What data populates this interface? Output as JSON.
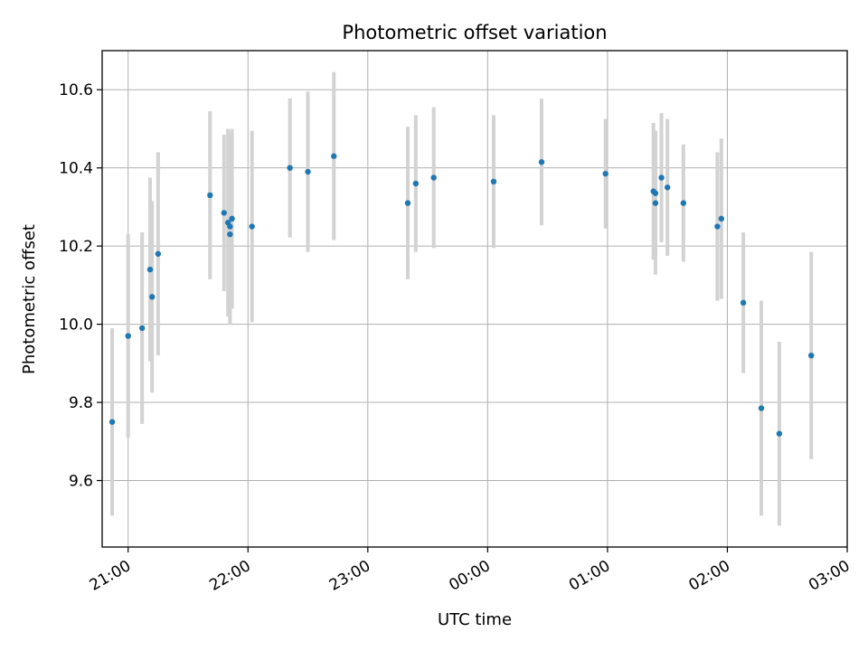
{
  "chart_data": {
    "type": "scatter",
    "title": "Photometric offset variation",
    "xlabel": "UTC time",
    "ylabel": "Photometric offset",
    "x_unit": "UTC time of night, starting 21:00 (after midnight continues as 24:xx)",
    "xlim": [
      "20:47",
      "03:00"
    ],
    "ylim": [
      9.43,
      10.7
    ],
    "x_ticks": [
      "21:00",
      "22:00",
      "23:00",
      "00:00",
      "01:00",
      "02:00",
      "03:00"
    ],
    "y_ticks": [
      "9.6",
      "9.8",
      "10.0",
      "10.2",
      "10.4",
      "10.6"
    ],
    "grid": true,
    "marker_color": "#1f77b4",
    "errorbar_color": "#d3d3d3",
    "series": [
      {
        "points": [
          {
            "x": "20:52",
            "y": 9.75,
            "yerr": 0.24
          },
          {
            "x": "21:00",
            "y": 9.97,
            "yerr": 0.26
          },
          {
            "x": "21:07",
            "y": 9.99,
            "yerr": 0.245
          },
          {
            "x": "21:11",
            "y": 10.14,
            "yerr": 0.235
          },
          {
            "x": "21:12",
            "y": 10.07,
            "yerr": 0.245
          },
          {
            "x": "21:15",
            "y": 10.18,
            "yerr": 0.26
          },
          {
            "x": "21:41",
            "y": 10.33,
            "yerr": 0.215
          },
          {
            "x": "21:48",
            "y": 10.285,
            "yerr": 0.2
          },
          {
            "x": "21:50",
            "y": 10.26,
            "yerr": 0.24
          },
          {
            "x": "21:51",
            "y": 10.25,
            "yerr": 0.24
          },
          {
            "x": "21:51",
            "y": 10.23,
            "yerr": 0.23
          },
          {
            "x": "21:52",
            "y": 10.27,
            "yerr": 0.23
          },
          {
            "x": "22:02",
            "y": 10.25,
            "yerr": 0.245
          },
          {
            "x": "22:21",
            "y": 10.4,
            "yerr": 0.178
          },
          {
            "x": "22:30",
            "y": 10.39,
            "yerr": 0.205
          },
          {
            "x": "22:43",
            "y": 10.43,
            "yerr": 0.215
          },
          {
            "x": "23:20",
            "y": 10.31,
            "yerr": 0.195
          },
          {
            "x": "23:24",
            "y": 10.36,
            "yerr": 0.175
          },
          {
            "x": "23:33",
            "y": 10.375,
            "yerr": 0.18
          },
          {
            "x": "24:03",
            "y": 10.365,
            "yerr": 0.17
          },
          {
            "x": "24:27",
            "y": 10.415,
            "yerr": 0.162
          },
          {
            "x": "24:59",
            "y": 10.385,
            "yerr": 0.14
          },
          {
            "x": "25:23",
            "y": 10.34,
            "yerr": 0.175
          },
          {
            "x": "25:24",
            "y": 10.335,
            "yerr": 0.16
          },
          {
            "x": "25:24",
            "y": 10.31,
            "yerr": 0.183
          },
          {
            "x": "25:27",
            "y": 10.375,
            "yerr": 0.165
          },
          {
            "x": "25:30",
            "y": 10.35,
            "yerr": 0.175
          },
          {
            "x": "25:38",
            "y": 10.31,
            "yerr": 0.15
          },
          {
            "x": "25:55",
            "y": 10.25,
            "yerr": 0.19
          },
          {
            "x": "25:57",
            "y": 10.27,
            "yerr": 0.205
          },
          {
            "x": "26:08",
            "y": 10.055,
            "yerr": 0.18
          },
          {
            "x": "26:17",
            "y": 9.785,
            "yerr": 0.275
          },
          {
            "x": "26:26",
            "y": 9.72,
            "yerr": 0.235
          },
          {
            "x": "26:42",
            "y": 9.92,
            "yerr": 0.265
          }
        ]
      }
    ]
  }
}
